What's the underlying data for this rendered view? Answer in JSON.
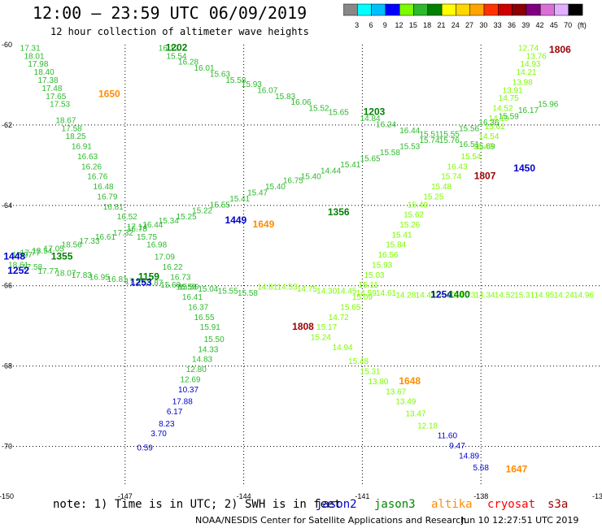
{
  "header": {
    "title": "12:00 – 23:59 UTC 06/09/2019",
    "subtitle": "12 hour collection of altimeter wave heights"
  },
  "colorbar": {
    "labels": [
      "3",
      "6",
      "9",
      "12",
      "15",
      "18",
      "21",
      "24",
      "27",
      "30",
      "33",
      "36",
      "39",
      "42",
      "45",
      "70",
      "(ft)"
    ],
    "colors": [
      "#888888",
      "#00ffff",
      "#00bfff",
      "#0000ff",
      "#7cfc00",
      "#2db82d",
      "#008000",
      "#ffff00",
      "#ffd700",
      "#ffa500",
      "#ff3300",
      "#cc0000",
      "#8b0000",
      "#800080",
      "#da70d6",
      "#e0b0ff",
      "#000000"
    ]
  },
  "axes": {
    "x_ticks": [
      "-150",
      "-147",
      "-144",
      "-141",
      "-138",
      "-135"
    ],
    "y_ticks": [
      "-60",
      "-62",
      "-64",
      "-66",
      "-68",
      "-70"
    ],
    "x_ticks_top": [
      "-147",
      "-144",
      "-141",
      "-138"
    ]
  },
  "footer": {
    "note": "note: 1) Time is in UTC; 2) SWH is in feet",
    "sats": [
      {
        "name": "jason2",
        "color": "#0000cc"
      },
      {
        "name": "jason3",
        "color": "#008800"
      },
      {
        "name": "altika",
        "color": "#ff8c00"
      },
      {
        "name": "cryosat",
        "color": "#ff0000"
      },
      {
        "name": "s3a",
        "color": "#990000"
      }
    ],
    "credit": "NOAA/NESDIS Center for Satellite Applications and Research",
    "generated": "Jun 10 12:27:51 UTC 2019"
  },
  "tracks": [
    {
      "name": "jason3-track-1202",
      "color": "#2db82d",
      "points": [
        [
          -149.4,
          -60.15,
          "17.31"
        ],
        [
          -149.3,
          -60.35,
          "18.01"
        ],
        [
          -149.2,
          -60.55,
          "17.98"
        ],
        [
          -149.05,
          -60.75,
          "18.40"
        ],
        [
          -148.95,
          -60.95,
          "17.38"
        ],
        [
          -148.85,
          -61.15,
          "17.48"
        ],
        [
          -148.75,
          -61.35,
          "17.65"
        ],
        [
          -148.65,
          -61.55,
          "17.53"
        ],
        [
          -148.5,
          -61.95,
          "18.67"
        ],
        [
          -148.35,
          -62.15,
          "17.58"
        ],
        [
          -148.25,
          -62.35,
          "18.25"
        ],
        [
          -148.1,
          -62.6,
          "16.91"
        ],
        [
          -147.95,
          -62.85,
          "16.63"
        ],
        [
          -147.85,
          -63.1,
          "16.26"
        ],
        [
          -147.7,
          -63.35,
          "16.76"
        ],
        [
          -147.55,
          -63.6,
          "16.48"
        ],
        [
          -147.45,
          -63.85,
          "16.79"
        ],
        [
          -147.3,
          -64.1,
          "16.81"
        ],
        [
          -146.95,
          -64.35,
          "16.52"
        ],
        [
          -146.7,
          -64.6,
          "17.14"
        ],
        [
          -146.45,
          -64.85,
          "15.75"
        ],
        [
          -146.2,
          -65.05,
          "16.98"
        ],
        [
          -146.0,
          -65.35,
          "17.09"
        ],
        [
          -145.8,
          -65.6,
          "16.22"
        ],
        [
          -145.6,
          -65.85,
          "16.73"
        ],
        [
          -145.45,
          -66.1,
          "16.56"
        ],
        [
          -145.3,
          -66.35,
          "16.41"
        ],
        [
          -145.15,
          -66.6,
          "16.37"
        ],
        [
          -145.0,
          -66.85,
          "16.55"
        ],
        [
          -144.85,
          -67.1,
          "15.91"
        ],
        [
          -144.75,
          -67.4,
          "15.50"
        ],
        [
          -144.9,
          -67.65,
          "14.33"
        ],
        [
          -145.05,
          -67.9,
          "14.83"
        ],
        [
          -145.2,
          -68.15,
          "12.80"
        ],
        [
          -145.35,
          -68.4,
          "12.69"
        ]
      ]
    },
    {
      "name": "jason2-track-low",
      "color": "#0000cc",
      "points": [
        [
          -145.4,
          -68.65,
          "10.37"
        ],
        [
          -145.55,
          -68.95,
          "17.88"
        ],
        [
          -145.75,
          -69.2,
          "6.17"
        ],
        [
          -145.95,
          -69.5,
          "8.23"
        ],
        [
          -146.15,
          -69.75,
          "3.70"
        ],
        [
          -146.5,
          -70.1,
          "0.59"
        ]
      ]
    },
    {
      "name": "jason3-track-1203",
      "color": "#2db82d",
      "points": [
        [
          -145.9,
          -60.15,
          "16.12"
        ],
        [
          -145.7,
          -60.35,
          "15.54"
        ],
        [
          -145.4,
          -60.5,
          "16.28"
        ],
        [
          -145.0,
          -60.65,
          "16.01"
        ],
        [
          -144.6,
          -60.8,
          "15.63"
        ],
        [
          -144.2,
          -60.95,
          "15.58"
        ],
        [
          -143.8,
          -61.05,
          "15.93"
        ],
        [
          -143.4,
          -61.2,
          "16.07"
        ],
        [
          -142.95,
          -61.35,
          "15.83"
        ],
        [
          -142.55,
          -61.5,
          "16.06"
        ],
        [
          -142.1,
          -61.65,
          "15.52"
        ],
        [
          -141.6,
          -61.75,
          "15.65"
        ],
        [
          -140.8,
          -61.9,
          "14.84"
        ],
        [
          -140.4,
          -62.05,
          "16.24"
        ],
        [
          -139.8,
          -62.2,
          "16.44"
        ],
        [
          -139.3,
          -62.3,
          "15.51"
        ],
        [
          -138.8,
          -62.45,
          "15.76"
        ],
        [
          -138.3,
          -62.55,
          "16.51"
        ],
        [
          -137.9,
          -62.6,
          "15.69"
        ]
      ]
    },
    {
      "name": "s3a-track-1806",
      "color": "#7cfc00",
      "points": [
        [
          -136.8,
          -60.15,
          "12.74"
        ],
        [
          -136.6,
          -60.35,
          "13.76"
        ],
        [
          -136.75,
          -60.55,
          "14.93"
        ],
        [
          -136.85,
          -60.75,
          "14.21"
        ],
        [
          -136.95,
          -61.0,
          "13.98"
        ],
        [
          -137.2,
          -61.2,
          "13.91"
        ],
        [
          -137.3,
          -61.4,
          "14.75"
        ],
        [
          -137.45,
          -61.65,
          "14.52"
        ],
        [
          -137.55,
          -61.9,
          "14.19"
        ],
        [
          -137.65,
          -62.1,
          "15.61"
        ],
        [
          -137.8,
          -62.35,
          "14.54"
        ],
        [
          -137.95,
          -62.6,
          "16.49"
        ],
        [
          -138.25,
          -62.85,
          "15.54"
        ],
        [
          -138.6,
          -63.1,
          "16.43"
        ],
        [
          -138.75,
          -63.35,
          "15.74"
        ],
        [
          -139.0,
          -63.6,
          "15.48"
        ],
        [
          -139.2,
          -63.85,
          "15.25"
        ],
        [
          -139.6,
          -64.05,
          "15.40"
        ],
        [
          -139.7,
          -64.3,
          "15.62"
        ],
        [
          -139.8,
          -64.55,
          "15.26"
        ],
        [
          -140.0,
          -64.8,
          "15.41"
        ],
        [
          -140.15,
          -65.05,
          "15.84"
        ],
        [
          -140.35,
          -65.3,
          "16.56"
        ],
        [
          -140.5,
          -65.55,
          "15.93"
        ],
        [
          -140.7,
          -65.8,
          "15.03"
        ],
        [
          -140.85,
          -66.05,
          "15.11"
        ],
        [
          -141.0,
          -66.35,
          "15.09"
        ],
        [
          -141.3,
          -66.6,
          "15.65"
        ],
        [
          -141.6,
          -66.85,
          "14.72"
        ],
        [
          -141.9,
          -67.1,
          "15.17"
        ],
        [
          -142.05,
          -67.35,
          "15.24"
        ],
        [
          -141.5,
          -67.6,
          "14.94"
        ],
        [
          -141.1,
          -67.95,
          "15.48"
        ],
        [
          -140.8,
          -68.2,
          "15.31"
        ],
        [
          -140.6,
          -68.45,
          "13.80"
        ],
        [
          -140.15,
          -68.7,
          "13.67"
        ],
        [
          -139.9,
          -68.95,
          "13.49"
        ],
        [
          -139.65,
          -69.25,
          "13.47"
        ],
        [
          -139.35,
          -69.55,
          "12.18"
        ]
      ]
    },
    {
      "name": "jason2-track-1647",
      "color": "#0000cc",
      "points": [
        [
          -138.85,
          -69.8,
          "11.60"
        ],
        [
          -138.6,
          -70.05,
          "9.47"
        ],
        [
          -138.3,
          -70.3,
          "14.89"
        ],
        [
          -138.0,
          -70.6,
          "5.68"
        ]
      ]
    },
    {
      "name": "jason3-track-crossing",
      "color": "#2db82d",
      "points": [
        [
          -149.6,
          -65.3,
          "17.97"
        ],
        [
          -149.4,
          -65.25,
          "17.77"
        ],
        [
          -149.1,
          -65.2,
          "18.54"
        ],
        [
          -148.8,
          -65.15,
          "17.05"
        ],
        [
          -148.35,
          -65.05,
          "18.56"
        ],
        [
          -147.9,
          -64.95,
          "17.33"
        ],
        [
          -147.5,
          -64.85,
          "16.61"
        ],
        [
          -147.05,
          -64.75,
          "17.32"
        ],
        [
          -146.7,
          -64.65,
          "16.78"
        ],
        [
          -146.3,
          -64.55,
          "16.44"
        ],
        [
          -145.9,
          -64.45,
          "15.34"
        ],
        [
          -145.45,
          -64.35,
          "15.25"
        ],
        [
          -145.05,
          -64.2,
          "15.22"
        ],
        [
          -144.6,
          -64.05,
          "15.55"
        ],
        [
          -144.1,
          -63.9,
          "15.41"
        ],
        [
          -143.65,
          -63.75,
          "15.47"
        ],
        [
          -143.2,
          -63.6,
          "15.40"
        ],
        [
          -142.75,
          -63.45,
          "16.75"
        ],
        [
          -142.3,
          -63.35,
          "15.40"
        ],
        [
          -141.8,
          -63.2,
          "14.44"
        ],
        [
          -141.3,
          -63.05,
          "15.41"
        ],
        [
          -140.8,
          -62.9,
          "15.65"
        ],
        [
          -140.3,
          -62.75,
          "15.58"
        ],
        [
          -139.8,
          -62.6,
          "15.53"
        ],
        [
          -139.3,
          -62.45,
          "15.74"
        ],
        [
          -138.8,
          -62.3,
          "15.55"
        ],
        [
          -138.3,
          -62.15,
          "15.56"
        ],
        [
          -137.8,
          -62.0,
          "16.36"
        ],
        [
          -137.3,
          -61.85,
          "15.59"
        ],
        [
          -136.8,
          -61.7,
          "16.17"
        ],
        [
          -136.3,
          -61.55,
          "15.96"
        ]
      ]
    },
    {
      "name": "jason3-track-1159",
      "color": "#2db82d",
      "points": [
        [
          -149.7,
          -65.55,
          "18.61"
        ],
        [
          -149.35,
          -65.6,
          "17.58"
        ],
        [
          -148.95,
          -65.7,
          "17.77"
        ],
        [
          -148.5,
          -65.75,
          "18.07"
        ],
        [
          -148.1,
          -65.8,
          "17.83"
        ],
        [
          -147.65,
          -65.85,
          "16.95"
        ],
        [
          -147.2,
          -65.9,
          "16.81"
        ],
        [
          -146.75,
          -65.95,
          "17.57"
        ],
        [
          -146.3,
          -66.0,
          "15.87"
        ],
        [
          -145.85,
          -66.05,
          "15.60"
        ],
        [
          -145.4,
          -66.1,
          "15.56"
        ],
        [
          -144.9,
          -66.15,
          "15.04"
        ],
        [
          -144.4,
          -66.2,
          "15.55"
        ],
        [
          -143.9,
          -66.25,
          "15.58"
        ]
      ]
    },
    {
      "name": "s3a-track-east",
      "color": "#7cfc00",
      "points": [
        [
          -143.4,
          -66.1,
          "14.81"
        ],
        [
          -142.9,
          -66.1,
          "14.53"
        ],
        [
          -142.4,
          -66.15,
          "14.75"
        ],
        [
          -141.9,
          -66.2,
          "14.30"
        ],
        [
          -141.4,
          -66.2,
          "14.45"
        ],
        [
          -140.9,
          -66.25,
          "14.59"
        ],
        [
          -140.4,
          -66.25,
          "14.61"
        ],
        [
          -139.9,
          -66.3,
          "14.28"
        ],
        [
          -139.4,
          -66.3,
          "14.43"
        ],
        [
          -138.9,
          -66.3,
          "14.50"
        ],
        [
          -138.4,
          -66.3,
          "14.73"
        ],
        [
          -137.9,
          -66.3,
          "14.34"
        ],
        [
          -137.4,
          -66.3,
          "14.52"
        ],
        [
          -136.9,
          -66.3,
          "15.31"
        ],
        [
          -136.4,
          -66.3,
          "14.95"
        ],
        [
          -135.9,
          -66.3,
          "14.24"
        ],
        [
          -135.4,
          -66.3,
          "14.96"
        ]
      ]
    }
  ],
  "time_labels": [
    {
      "text": "1202",
      "color": "#008000",
      "lon": -145.7,
      "lat": -60.15
    },
    {
      "text": "1650",
      "color": "#ff8c00",
      "lon": -147.4,
      "lat": -61.3
    },
    {
      "text": "1203",
      "color": "#008000",
      "lon": -140.7,
      "lat": -61.75
    },
    {
      "text": "1806",
      "color": "#990000",
      "lon": -136.0,
      "lat": -60.2
    },
    {
      "text": "1807",
      "color": "#990000",
      "lon": -137.9,
      "lat": -63.35
    },
    {
      "text": "1450",
      "color": "#0000cc",
      "lon": -136.9,
      "lat": -63.15
    },
    {
      "text": "1449",
      "color": "#0000cc",
      "lon": -144.2,
      "lat": -64.45
    },
    {
      "text": "1649",
      "color": "#ff8c00",
      "lon": -143.5,
      "lat": -64.55
    },
    {
      "text": "1356",
      "color": "#008000",
      "lon": -141.6,
      "lat": -64.25
    },
    {
      "text": "1448",
      "color": "#0000cc",
      "lon": -149.8,
      "lat": -65.35
    },
    {
      "text": "1355",
      "color": "#008000",
      "lon": -148.6,
      "lat": -65.35
    },
    {
      "text": "1252",
      "color": "#0000cc",
      "lon": -149.7,
      "lat": -65.7
    },
    {
      "text": "1253",
      "color": "#0000cc",
      "lon": -146.6,
      "lat": -66.0
    },
    {
      "text": "1159",
      "color": "#008000",
      "lon": -146.4,
      "lat": -65.85
    },
    {
      "text": "1254",
      "color": "#0000cc",
      "lon": -139.0,
      "lat": -66.3
    },
    {
      "text": "1400",
      "color": "#008000",
      "lon": -138.55,
      "lat": -66.3
    },
    {
      "text": "1808",
      "color": "#990000",
      "lon": -142.5,
      "lat": -67.1
    },
    {
      "text": "1648",
      "color": "#ff8c00",
      "lon": -139.8,
      "lat": -68.45
    },
    {
      "text": "1647",
      "color": "#ff8c00",
      "lon": -137.1,
      "lat": -70.65
    }
  ]
}
